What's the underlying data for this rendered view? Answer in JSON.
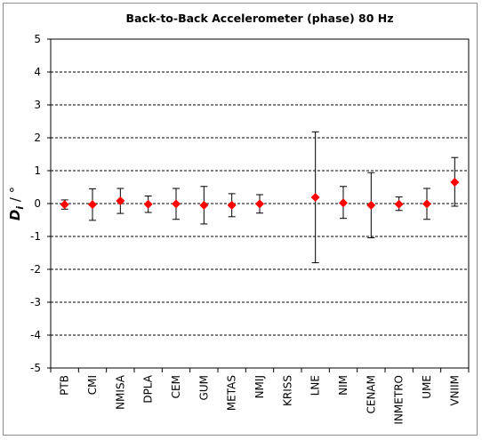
{
  "chart_data": {
    "type": "scatter",
    "title": "Back-to-Back Accelerometer  (phase)   80 Hz",
    "ylabel_main": "D",
    "ylabel_sub": "i",
    "ylabel_unit": " / °",
    "xlabel": "",
    "ylim": [
      -5,
      5
    ],
    "yticks": [
      -5,
      -4,
      -3,
      -2,
      -1,
      0,
      1,
      2,
      3,
      4,
      5
    ],
    "grid": true,
    "legend": "none",
    "marker": "diamond",
    "marker_color": "#ff0000",
    "errorbar_color": "#000000",
    "categories": [
      "PTB",
      "CMI",
      "NMISA",
      "DPLA",
      "CEM",
      "GUM",
      "METAS",
      "NMIJ",
      "KRISS",
      "LNE",
      "NIM",
      "CENAM",
      "INMETRO",
      "UME",
      "VNIIM"
    ],
    "values": [
      -0.03,
      -0.03,
      0.08,
      -0.02,
      -0.01,
      -0.05,
      -0.05,
      -0.01,
      null,
      0.19,
      0.02,
      -0.05,
      -0.02,
      -0.01,
      0.65
    ],
    "error_low": [
      0.14,
      0.48,
      0.38,
      0.25,
      0.47,
      0.57,
      0.35,
      0.28,
      null,
      1.99,
      0.47,
      0.99,
      0.19,
      0.47,
      0.73
    ],
    "error_high": [
      0.14,
      0.48,
      0.38,
      0.25,
      0.47,
      0.57,
      0.35,
      0.28,
      null,
      1.99,
      0.5,
      0.99,
      0.22,
      0.47,
      0.75
    ]
  }
}
